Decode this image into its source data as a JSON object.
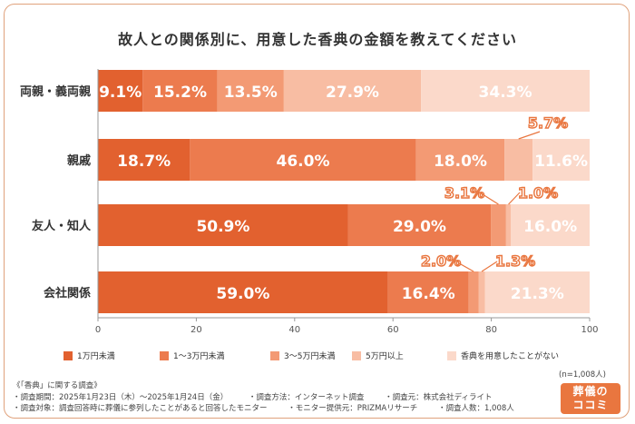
{
  "chart_data": {
    "type": "bar",
    "orientation": "horizontal",
    "stacked": true,
    "title": "故人との関係別に、用意した香典の金額を教えてください",
    "categories": [
      "両親・義両親",
      "親戚",
      "友人・知人",
      "会社関係"
    ],
    "series": [
      {
        "name": "1万円未満",
        "color": "#e2612f",
        "values": [
          9.1,
          18.7,
          50.9,
          59.0
        ]
      },
      {
        "name": "1～3万円未満",
        "color": "#ec7b4e",
        "values": [
          15.2,
          46.0,
          29.0,
          16.4
        ]
      },
      {
        "name": "3～5万円未満",
        "color": "#f39a74",
        "values": [
          13.5,
          18.0,
          3.1,
          2.0
        ]
      },
      {
        "name": "5万円以上",
        "color": "#f8bda3",
        "values": [
          27.9,
          5.7,
          1.0,
          1.3
        ]
      },
      {
        "name": "香典を用意したことがない",
        "color": "#fbd9ca",
        "values": [
          34.3,
          11.6,
          16.0,
          21.3
        ]
      }
    ],
    "labels": [
      [
        "9.1%",
        "15.2%",
        "13.5%",
        "27.9%",
        "34.3%"
      ],
      [
        "18.7%",
        "46.0%",
        "18.0%",
        "5.7%",
        "11.6%"
      ],
      [
        "50.9%",
        "29.0%",
        "3.1%",
        "1.0%",
        "16.0%"
      ],
      [
        "59.0%",
        "16.4%",
        "2.0%",
        "1.3%",
        "21.3%"
      ]
    ],
    "xlim": [
      0,
      100
    ],
    "xticks": [
      "0",
      "20",
      "40",
      "60",
      "80",
      "100"
    ],
    "legend_position": "bottom",
    "grid": false
  },
  "footer": {
    "survey_name": "《「香典」に関する調査》",
    "period": "・調査期間：2025年1月23日（木）～2025年1月24日（金）",
    "method": "・調査方法：インターネット調査",
    "organizer": "・調査元：株式会社ディライト",
    "target": "・調査対象：調査回答時に葬儀に参列したことがあると回答したモニター",
    "provider": "・モニター提供元：PRIZMAリサーチ",
    "respondents": "・調査人数：1,008人",
    "n_count": "(n=1,008人)"
  },
  "logo": {
    "line1": "葬儀の",
    "line2": "ココミ"
  }
}
